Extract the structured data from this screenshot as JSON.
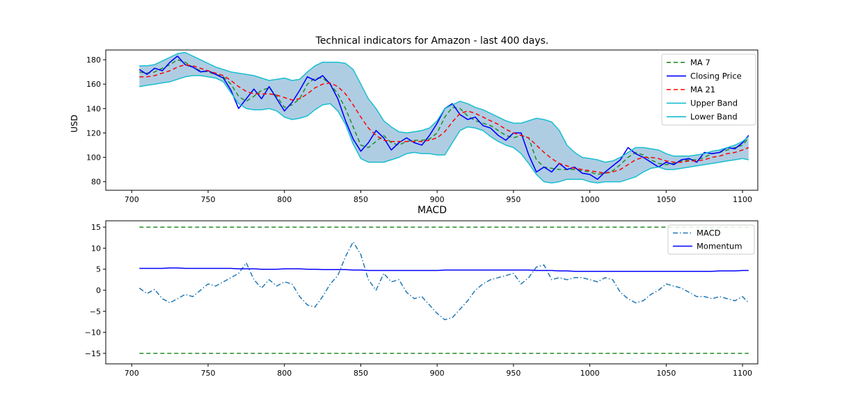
{
  "chart_data": [
    {
      "type": "line",
      "title": "Technical indicators for Amazon - last 400 days.",
      "xlabel": "",
      "ylabel": "USD",
      "xlim": [
        683,
        1110
      ],
      "ylim": [
        73,
        188
      ],
      "xticks": [
        700,
        750,
        800,
        850,
        900,
        950,
        1000,
        1050,
        1100
      ],
      "yticks": [
        80,
        100,
        120,
        140,
        160,
        180
      ],
      "legend_position": "top-right",
      "grid": false,
      "x": [
        705,
        710,
        715,
        720,
        725,
        730,
        735,
        740,
        745,
        750,
        755,
        760,
        765,
        770,
        775,
        780,
        785,
        790,
        795,
        800,
        805,
        810,
        815,
        820,
        825,
        830,
        835,
        840,
        845,
        850,
        855,
        860,
        865,
        870,
        875,
        880,
        885,
        890,
        895,
        900,
        905,
        910,
        915,
        920,
        925,
        930,
        935,
        940,
        945,
        950,
        955,
        960,
        965,
        970,
        975,
        980,
        985,
        990,
        995,
        1000,
        1005,
        1010,
        1015,
        1020,
        1025,
        1030,
        1035,
        1040,
        1045,
        1050,
        1055,
        1060,
        1065,
        1070,
        1075,
        1080,
        1085,
        1090,
        1095,
        1100,
        1104
      ],
      "series": [
        {
          "name": "MA 7",
          "color": "#228b22",
          "style": "dashed",
          "values": [
            170,
            169,
            170,
            173,
            176,
            180,
            178,
            174,
            171,
            170,
            168,
            166,
            160,
            150,
            146,
            150,
            155,
            157,
            150,
            141,
            143,
            148,
            160,
            165,
            165,
            160,
            152,
            140,
            125,
            110,
            108,
            113,
            118,
            112,
            110,
            113,
            114,
            114,
            115,
            120,
            133,
            141,
            140,
            134,
            130,
            128,
            126,
            122,
            118,
            116,
            118,
            116,
            98,
            92,
            91,
            90,
            90,
            90,
            89,
            88,
            86,
            87,
            89,
            94,
            100,
            104,
            102,
            98,
            95,
            94,
            95,
            97,
            98,
            98,
            100,
            103,
            104,
            106,
            108,
            110,
            116
          ]
        },
        {
          "name": "Closing Price",
          "color": "#0000ff",
          "style": "solid",
          "values": [
            172,
            168,
            173,
            171,
            178,
            183,
            176,
            174,
            170,
            171,
            168,
            165,
            155,
            140,
            148,
            156,
            148,
            158,
            148,
            138,
            145,
            155,
            166,
            163,
            167,
            160,
            148,
            130,
            115,
            105,
            112,
            122,
            116,
            106,
            112,
            116,
            112,
            110,
            118,
            128,
            140,
            144,
            135,
            131,
            133,
            126,
            124,
            118,
            114,
            120,
            120,
            102,
            88,
            92,
            88,
            95,
            90,
            92,
            87,
            86,
            82,
            88,
            93,
            98,
            108,
            103,
            100,
            96,
            92,
            96,
            94,
            98,
            99,
            96,
            104,
            103,
            104,
            108,
            107,
            112,
            118
          ]
        },
        {
          "name": "MA 21",
          "color": "#ff0000",
          "style": "dashed",
          "values": [
            166,
            166,
            167,
            169,
            171,
            174,
            176,
            175,
            173,
            171,
            169,
            167,
            163,
            158,
            154,
            152,
            152,
            152,
            151,
            149,
            147,
            148,
            152,
            157,
            160,
            161,
            158,
            152,
            143,
            133,
            124,
            118,
            114,
            113,
            113,
            113,
            113,
            113,
            114,
            116,
            121,
            129,
            136,
            138,
            136,
            133,
            130,
            127,
            123,
            120,
            118,
            116,
            110,
            104,
            99,
            95,
            93,
            91,
            90,
            89,
            88,
            87,
            88,
            90,
            94,
            98,
            100,
            100,
            99,
            97,
            96,
            96,
            97,
            97,
            98,
            100,
            101,
            103,
            104,
            106,
            108
          ]
        },
        {
          "name": "Upper Band",
          "color": "#17becf",
          "style": "solid",
          "values": [
            175,
            175,
            176,
            179,
            182,
            185,
            186,
            183,
            180,
            177,
            174,
            172,
            170,
            169,
            168,
            167,
            165,
            163,
            164,
            165,
            163,
            164,
            170,
            175,
            178,
            178,
            178,
            177,
            172,
            160,
            148,
            140,
            130,
            125,
            121,
            120,
            121,
            122,
            124,
            130,
            140,
            143,
            146,
            144,
            141,
            139,
            136,
            133,
            130,
            128,
            128,
            130,
            132,
            131,
            129,
            122,
            110,
            104,
            100,
            99,
            98,
            96,
            97,
            100,
            104,
            108,
            108,
            107,
            106,
            103,
            101,
            101,
            101,
            102,
            103,
            105,
            106,
            108,
            110,
            113,
            117
          ]
        },
        {
          "name": "Lower Band",
          "color": "#17becf",
          "style": "solid",
          "values": [
            158,
            159,
            160,
            161,
            162,
            164,
            166,
            167,
            167,
            166,
            165,
            162,
            153,
            144,
            140,
            139,
            139,
            140,
            138,
            133,
            131,
            132,
            134,
            139,
            143,
            144,
            138,
            127,
            111,
            99,
            96,
            96,
            96,
            98,
            100,
            103,
            104,
            103,
            103,
            102,
            102,
            112,
            122,
            125,
            124,
            122,
            117,
            113,
            110,
            108,
            103,
            95,
            86,
            80,
            79,
            80,
            82,
            82,
            82,
            80,
            79,
            80,
            80,
            80,
            82,
            84,
            88,
            91,
            92,
            90,
            90,
            91,
            92,
            93,
            94,
            95,
            96,
            97,
            98,
            99,
            98
          ]
        }
      ],
      "band_fill_color": "#aecde3"
    },
    {
      "type": "line",
      "title": "MACD",
      "xlabel": "",
      "ylabel": "",
      "xlim": [
        683,
        1110
      ],
      "ylim": [
        -17.5,
        16.5
      ],
      "xticks": [
        700,
        750,
        800,
        850,
        900,
        950,
        1000,
        1050,
        1100
      ],
      "yticks": [
        15,
        10,
        5,
        0,
        -5,
        -10,
        -15
      ],
      "ytick_labels": [
        "15",
        "10",
        "5",
        "0",
        "−5",
        "−10",
        "−15"
      ],
      "legend_position": "top-right",
      "grid": false,
      "x": [
        705,
        710,
        715,
        720,
        725,
        730,
        735,
        740,
        745,
        750,
        755,
        760,
        765,
        770,
        775,
        780,
        785,
        790,
        795,
        800,
        805,
        810,
        815,
        820,
        825,
        830,
        835,
        840,
        845,
        850,
        855,
        860,
        865,
        870,
        875,
        880,
        885,
        890,
        895,
        900,
        905,
        910,
        915,
        920,
        925,
        930,
        935,
        940,
        945,
        950,
        955,
        960,
        965,
        970,
        975,
        980,
        985,
        990,
        995,
        1000,
        1005,
        1010,
        1015,
        1020,
        1025,
        1030,
        1035,
        1040,
        1045,
        1050,
        1055,
        1060,
        1065,
        1070,
        1075,
        1080,
        1085,
        1090,
        1095,
        1100,
        1104
      ],
      "series": [
        {
          "name": "MACD",
          "color": "#1f77b4",
          "style": "dashdot",
          "values": [
            0.5,
            -0.8,
            0.2,
            -2.0,
            -3.0,
            -2.0,
            -1.0,
            -1.5,
            0.0,
            1.5,
            1.0,
            2.0,
            3.0,
            4.0,
            6.5,
            2.5,
            0.5,
            2.5,
            1.0,
            2.0,
            1.5,
            -1.5,
            -3.5,
            -4.0,
            -1.5,
            1.5,
            3.5,
            8.0,
            11.5,
            8.5,
            2.5,
            0.0,
            4.0,
            2.0,
            2.5,
            -0.5,
            -2.0,
            -1.5,
            -3.5,
            -5.5,
            -7.0,
            -6.5,
            -4.5,
            -2.5,
            0.0,
            1.5,
            2.5,
            3.0,
            3.5,
            4.0,
            1.5,
            3.0,
            5.5,
            6.0,
            2.5,
            3.0,
            2.5,
            3.0,
            3.0,
            2.5,
            2.0,
            3.0,
            2.5,
            -0.5,
            -2.0,
            -3.0,
            -2.5,
            -1.0,
            0.0,
            1.5,
            1.0,
            0.5,
            -0.5,
            -1.5,
            -1.5,
            -2.0,
            -1.5,
            -2.0,
            -2.5,
            -1.5,
            -3.0
          ]
        },
        {
          "name": "Momentum",
          "color": "#0000ff",
          "style": "solid",
          "values": [
            5.2,
            5.2,
            5.2,
            5.2,
            5.3,
            5.3,
            5.2,
            5.2,
            5.2,
            5.2,
            5.2,
            5.2,
            5.2,
            5.1,
            5.1,
            5.1,
            5.0,
            5.0,
            5.0,
            5.1,
            5.1,
            5.1,
            5.0,
            5.0,
            4.9,
            4.9,
            4.9,
            4.9,
            4.8,
            4.8,
            4.7,
            4.7,
            4.7,
            4.7,
            4.7,
            4.7,
            4.7,
            4.7,
            4.7,
            4.7,
            4.8,
            4.8,
            4.8,
            4.8,
            4.8,
            4.8,
            4.8,
            4.8,
            4.8,
            4.8,
            4.8,
            4.8,
            4.7,
            4.7,
            4.7,
            4.6,
            4.6,
            4.5,
            4.5,
            4.5,
            4.5,
            4.5,
            4.5,
            4.5,
            4.5,
            4.5,
            4.5,
            4.5,
            4.5,
            4.5,
            4.5,
            4.5,
            4.5,
            4.5,
            4.5,
            4.5,
            4.6,
            4.6,
            4.6,
            4.7,
            4.7
          ]
        },
        {
          "name": "",
          "color": "#228b22",
          "style": "dashed",
          "legend": false,
          "values_const": 15
        },
        {
          "name": "",
          "color": "#228b22",
          "style": "dashed",
          "legend": false,
          "values_const": -15
        }
      ]
    }
  ]
}
